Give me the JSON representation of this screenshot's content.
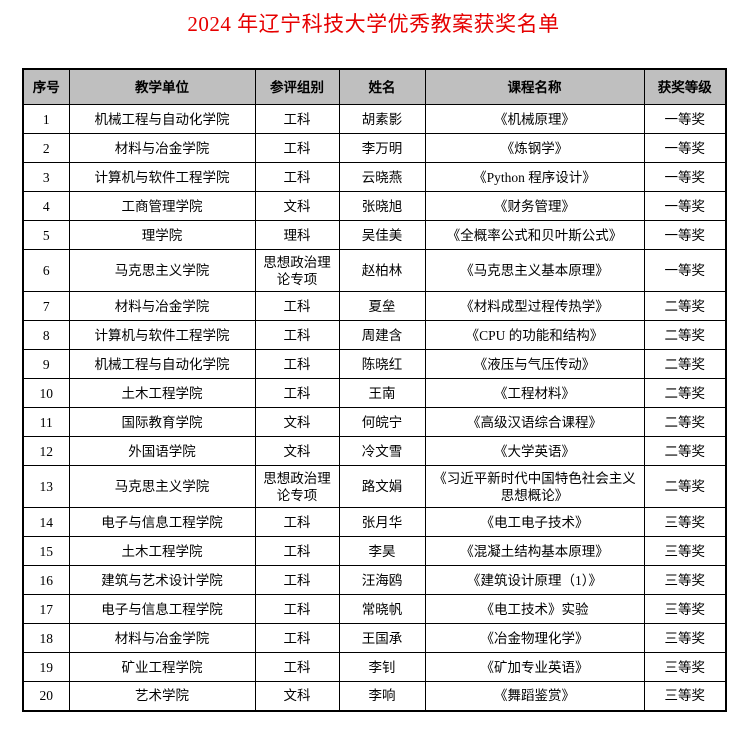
{
  "page": {
    "title": "2024 年辽宁科技大学优秀教案获奖名单"
  },
  "colors": {
    "title_text": "#e60000",
    "header_bg": "#bfbfbf",
    "grid_line": "#000000"
  },
  "table": {
    "columns": [
      {
        "key": "no",
        "label": "序号"
      },
      {
        "key": "unit",
        "label": "教学单位"
      },
      {
        "key": "group",
        "label": "参评组别"
      },
      {
        "key": "name",
        "label": "姓名"
      },
      {
        "key": "course",
        "label": "课程名称"
      },
      {
        "key": "award",
        "label": "获奖等级"
      }
    ],
    "rows": [
      {
        "no": "1",
        "unit": "机械工程与自动化学院",
        "group": "工科",
        "name": "胡素影",
        "course": "《机械原理》",
        "award": "一等奖"
      },
      {
        "no": "2",
        "unit": "材料与冶金学院",
        "group": "工科",
        "name": "李万明",
        "course": "《炼钢学》",
        "award": "一等奖"
      },
      {
        "no": "3",
        "unit": "计算机与软件工程学院",
        "group": "工科",
        "name": "云晓燕",
        "course": "《Python 程序设计》",
        "award": "一等奖"
      },
      {
        "no": "4",
        "unit": "工商管理学院",
        "group": "文科",
        "name": "张晓旭",
        "course": "《财务管理》",
        "award": "一等奖"
      },
      {
        "no": "5",
        "unit": "理学院",
        "group": "理科",
        "name": "吴佳美",
        "course": "《全概率公式和贝叶斯公式》",
        "award": "一等奖"
      },
      {
        "no": "6",
        "unit": "马克思主义学院",
        "group": "思想政治理论专项",
        "name": "赵柏林",
        "course": "《马克思主义基本原理》",
        "award": "一等奖"
      },
      {
        "no": "7",
        "unit": "材料与冶金学院",
        "group": "工科",
        "name": "夏垒",
        "course": "《材料成型过程传热学》",
        "award": "二等奖"
      },
      {
        "no": "8",
        "unit": "计算机与软件工程学院",
        "group": "工科",
        "name": "周建含",
        "course": "《CPU 的功能和结构》",
        "award": "二等奖"
      },
      {
        "no": "9",
        "unit": "机械工程与自动化学院",
        "group": "工科",
        "name": "陈晓红",
        "course": "《液压与气压传动》",
        "award": "二等奖"
      },
      {
        "no": "10",
        "unit": "土木工程学院",
        "group": "工科",
        "name": "王南",
        "course": "《工程材料》",
        "award": "二等奖"
      },
      {
        "no": "11",
        "unit": "国际教育学院",
        "group": "文科",
        "name": "何皖宁",
        "course": "《高级汉语综合课程》",
        "award": "二等奖"
      },
      {
        "no": "12",
        "unit": "外国语学院",
        "group": "文科",
        "name": "冷文雪",
        "course": "《大学英语》",
        "award": "二等奖"
      },
      {
        "no": "13",
        "unit": "马克思主义学院",
        "group": "思想政治理论专项",
        "name": "路文娟",
        "course": "《习近平新时代中国特色社会主义思想概论》",
        "award": "二等奖"
      },
      {
        "no": "14",
        "unit": "电子与信息工程学院",
        "group": "工科",
        "name": "张月华",
        "course": "《电工电子技术》",
        "award": "三等奖"
      },
      {
        "no": "15",
        "unit": "土木工程学院",
        "group": "工科",
        "name": "李昊",
        "course": "《混凝土结构基本原理》",
        "award": "三等奖"
      },
      {
        "no": "16",
        "unit": "建筑与艺术设计学院",
        "group": "工科",
        "name": "汪海鸥",
        "course": "《建筑设计原理（1）》",
        "award": "三等奖"
      },
      {
        "no": "17",
        "unit": "电子与信息工程学院",
        "group": "工科",
        "name": "常晓帆",
        "course": "《电工技术》实验",
        "award": "三等奖"
      },
      {
        "no": "18",
        "unit": "材料与冶金学院",
        "group": "工科",
        "name": "王国承",
        "course": "《冶金物理化学》",
        "award": "三等奖"
      },
      {
        "no": "19",
        "unit": "矿业工程学院",
        "group": "工科",
        "name": "李钊",
        "course": "《矿加专业英语》",
        "award": "三等奖"
      },
      {
        "no": "20",
        "unit": "艺术学院",
        "group": "文科",
        "name": "李响",
        "course": "《舞蹈鉴赏》",
        "award": "三等奖"
      }
    ]
  }
}
